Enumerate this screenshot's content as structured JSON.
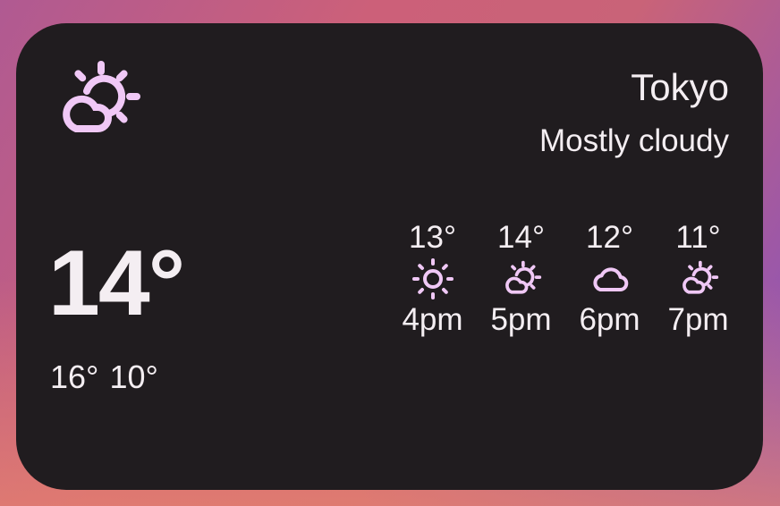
{
  "widget": {
    "city": "Tokyo",
    "condition": "Mostly cloudy",
    "condition_icon": "partly-cloudy-icon",
    "current_temp": "14°",
    "high": "16°",
    "low": "10°",
    "accent_color": "#f0c8f6",
    "hourly": [
      {
        "temp": "13°",
        "icon": "sunny",
        "time": "4pm"
      },
      {
        "temp": "14°",
        "icon": "partly-cloudy",
        "time": "5pm"
      },
      {
        "temp": "12°",
        "icon": "cloudy",
        "time": "6pm"
      },
      {
        "temp": "11°",
        "icon": "partly-cloudy",
        "time": "7pm"
      }
    ]
  }
}
